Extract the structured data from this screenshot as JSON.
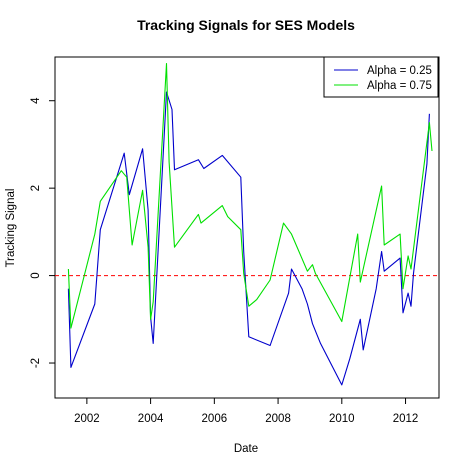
{
  "chart_data": {
    "type": "line",
    "title": "Tracking Signals for SES Models",
    "xlabel": "Date",
    "ylabel": "Tracking Signal",
    "x_axis": {
      "range": [
        2001.0,
        2013.05
      ],
      "ticks": [
        2002,
        2004,
        2006,
        2008,
        2010,
        2012
      ],
      "tick_labels": [
        "2002",
        "2004",
        "2006",
        "2008",
        "2010",
        "2012"
      ]
    },
    "y_axis": {
      "range": [
        -2.8,
        5.0
      ],
      "ticks": [
        -2,
        0,
        2,
        4
      ],
      "tick_labels": [
        "-2",
        "0",
        "2",
        "4"
      ]
    },
    "grid": false,
    "legend_position": "top-right",
    "reference_line": {
      "y": 0,
      "style": "dashed",
      "color": "#ff0000"
    },
    "series": [
      {
        "name": "Alpha = 0.25",
        "color": "#0000cc",
        "x": [
          2001.42,
          2001.5,
          2002.25,
          2002.42,
          2003.17,
          2003.33,
          2003.75,
          2003.92,
          2004.0,
          2004.08,
          2004.5,
          2004.67,
          2004.75,
          2005.5,
          2005.67,
          2006.25,
          2006.83,
          2006.92,
          2007.08,
          2007.75,
          2008.33,
          2008.42,
          2008.75,
          2008.92,
          2009.08,
          2009.33,
          2010.0,
          2010.25,
          2010.58,
          2010.67,
          2011.08,
          2011.25,
          2011.33,
          2011.83,
          2011.92,
          2012.08,
          2012.17,
          2012.25,
          2012.67,
          2012.75
        ],
        "y": [
          -0.3,
          -2.1,
          -0.65,
          1.05,
          2.8,
          1.85,
          2.9,
          1.5,
          -0.95,
          -1.55,
          4.2,
          3.8,
          2.42,
          2.65,
          2.45,
          2.75,
          2.25,
          0.55,
          -1.4,
          -1.6,
          -0.4,
          0.15,
          -0.3,
          -0.65,
          -1.1,
          -1.55,
          -2.5,
          -1.9,
          -1.0,
          -1.7,
          -0.3,
          0.55,
          0.1,
          0.4,
          -0.85,
          -0.4,
          -0.7,
          0.05,
          2.55,
          3.7
        ]
      },
      {
        "name": "Alpha = 0.75",
        "color": "#00e000",
        "x": [
          2001.42,
          2001.5,
          2002.25,
          2002.42,
          2003.08,
          2003.25,
          2003.42,
          2003.75,
          2003.92,
          2004.0,
          2004.08,
          2004.5,
          2004.58,
          2004.75,
          2005.5,
          2005.58,
          2006.25,
          2006.42,
          2006.83,
          2006.92,
          2007.08,
          2007.33,
          2007.75,
          2008.17,
          2008.42,
          2008.92,
          2009.08,
          2009.17,
          2010.0,
          2010.5,
          2010.58,
          2011.25,
          2011.33,
          2011.83,
          2011.92,
          2012.08,
          2012.17,
          2012.75,
          2012.83
        ],
        "y": [
          0.15,
          -1.2,
          0.95,
          1.7,
          2.4,
          2.25,
          0.7,
          1.95,
          0.65,
          -1.0,
          -0.6,
          4.85,
          2.6,
          0.65,
          1.4,
          1.2,
          1.6,
          1.35,
          1.05,
          0.05,
          -0.7,
          -0.55,
          -0.1,
          1.2,
          0.95,
          0.1,
          0.25,
          0.05,
          -1.05,
          0.95,
          -0.15,
          2.05,
          0.7,
          0.95,
          -0.3,
          0.45,
          0.15,
          3.5,
          2.85
        ]
      }
    ]
  }
}
